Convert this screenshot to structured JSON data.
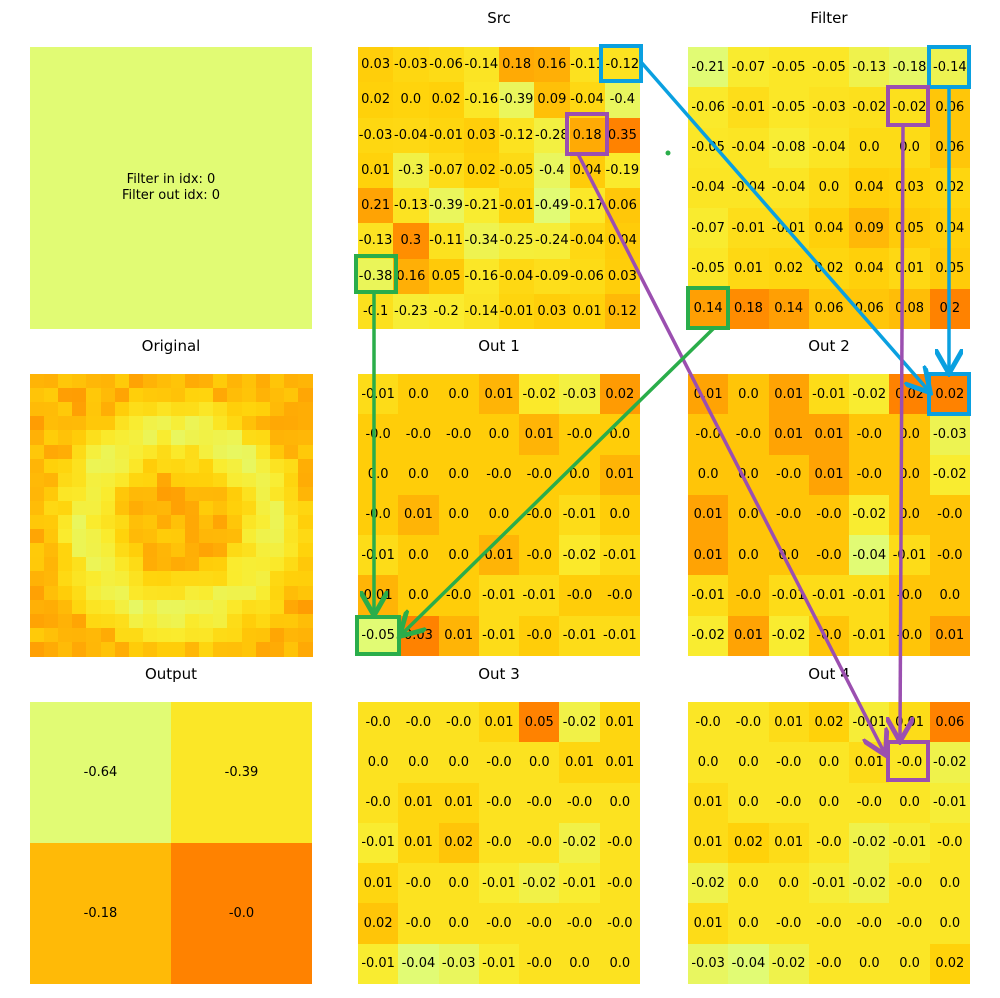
{
  "titles": {
    "src": "Src",
    "filter": "Filter",
    "original": "Original",
    "out1": "Out 1",
    "out2": "Out 2",
    "out3": "Out 3",
    "out4": "Out 4",
    "output": "Output"
  },
  "info": {
    "line1": "Filter in idx: 0",
    "line2": "Filter out idx: 0"
  },
  "src": [
    [
      "0.03",
      "-0.03",
      "-0.06",
      "-0.14",
      "0.18",
      "0.16",
      "-0.11",
      "-0.12"
    ],
    [
      "0.02",
      "0.0",
      "0.02",
      "-0.16",
      "-0.39",
      "0.09",
      "-0.04",
      "-0.4"
    ],
    [
      "-0.03",
      "-0.04",
      "-0.01",
      "0.03",
      "-0.12",
      "-0.28",
      "0.18",
      "0.35"
    ],
    [
      "0.01",
      "-0.3",
      "-0.07",
      "0.02",
      "-0.05",
      "-0.4",
      "0.04",
      "-0.19"
    ],
    [
      "0.21",
      "-0.13",
      "-0.39",
      "-0.21",
      "-0.01",
      "-0.49",
      "-0.17",
      "0.06"
    ],
    [
      "-0.13",
      "0.3",
      "-0.11",
      "-0.34",
      "-0.25",
      "-0.24",
      "-0.04",
      "0.04"
    ],
    [
      "-0.38",
      "0.16",
      "0.05",
      "-0.16",
      "-0.04",
      "-0.09",
      "-0.06",
      "0.03"
    ],
    [
      "-0.1",
      "-0.23",
      "-0.2",
      "-0.14",
      "-0.01",
      "0.03",
      "0.01",
      "0.12"
    ]
  ],
  "filter": [
    [
      "-0.21",
      "-0.07",
      "-0.05",
      "-0.05",
      "-0.13",
      "-0.18",
      "-0.14"
    ],
    [
      "-0.06",
      "-0.01",
      "-0.05",
      "-0.03",
      "-0.02",
      "-0.02",
      "0.06"
    ],
    [
      "-0.05",
      "-0.04",
      "-0.08",
      "-0.04",
      "0.0",
      "0.0",
      "0.06"
    ],
    [
      "-0.04",
      "-0.04",
      "-0.04",
      "0.0",
      "0.04",
      "0.03",
      "0.02"
    ],
    [
      "-0.07",
      "-0.01",
      "-0.01",
      "0.04",
      "0.09",
      "0.05",
      "0.04"
    ],
    [
      "-0.05",
      "0.01",
      "0.02",
      "0.02",
      "0.04",
      "0.01",
      "0.05"
    ],
    [
      "0.14",
      "0.18",
      "0.14",
      "0.06",
      "0.06",
      "0.08",
      "0.2"
    ]
  ],
  "out1": [
    [
      "-0.01",
      "0.0",
      "0.0",
      "0.01",
      "-0.02",
      "-0.03",
      "0.02"
    ],
    [
      "-0.0",
      "-0.0",
      "-0.0",
      "0.0",
      "0.01",
      "-0.0",
      "0.0"
    ],
    [
      "0.0",
      "0.0",
      "0.0",
      "-0.0",
      "-0.0",
      "0.0",
      "0.01"
    ],
    [
      "-0.0",
      "0.01",
      "0.0",
      "0.0",
      "-0.0",
      "-0.01",
      "0.0"
    ],
    [
      "-0.01",
      "0.0",
      "0.0",
      "0.01",
      "-0.0",
      "-0.02",
      "-0.01"
    ],
    [
      "0.01",
      "0.0",
      "-0.0",
      "-0.01",
      "-0.01",
      "-0.0",
      "-0.0"
    ],
    [
      "-0.05",
      "0.03",
      "0.01",
      "-0.01",
      "-0.0",
      "-0.01",
      "-0.01"
    ]
  ],
  "out2": [
    [
      "0.01",
      "0.0",
      "0.01",
      "-0.01",
      "-0.02",
      "0.02",
      "0.02"
    ],
    [
      "-0.0",
      "-0.0",
      "0.01",
      "0.01",
      "-0.0",
      "0.0",
      "-0.03"
    ],
    [
      "0.0",
      "0.0",
      "-0.0",
      "0.01",
      "-0.0",
      "0.0",
      "-0.02"
    ],
    [
      "0.01",
      "0.0",
      "-0.0",
      "-0.0",
      "-0.02",
      "0.0",
      "-0.0"
    ],
    [
      "0.01",
      "0.0",
      "0.0",
      "-0.0",
      "-0.04",
      "-0.01",
      "-0.0"
    ],
    [
      "-0.01",
      "-0.0",
      "-0.01",
      "-0.01",
      "-0.01",
      "-0.0",
      "0.0"
    ],
    [
      "-0.02",
      "0.01",
      "-0.02",
      "-0.0",
      "-0.01",
      "-0.0",
      "0.01"
    ]
  ],
  "out3": [
    [
      "-0.0",
      "-0.0",
      "-0.0",
      "0.01",
      "0.05",
      "-0.02",
      "0.01"
    ],
    [
      "0.0",
      "0.0",
      "0.0",
      "-0.0",
      "0.0",
      "0.01",
      "0.01"
    ],
    [
      "-0.0",
      "0.01",
      "0.01",
      "-0.0",
      "-0.0",
      "-0.0",
      "0.0"
    ],
    [
      "-0.01",
      "0.01",
      "0.02",
      "-0.0",
      "-0.0",
      "-0.02",
      "-0.0"
    ],
    [
      "0.01",
      "-0.0",
      "0.0",
      "-0.01",
      "-0.02",
      "-0.01",
      "-0.0"
    ],
    [
      "0.02",
      "-0.0",
      "0.0",
      "-0.0",
      "-0.0",
      "-0.0",
      "-0.0"
    ],
    [
      "-0.01",
      "-0.04",
      "-0.03",
      "-0.01",
      "-0.0",
      "0.0",
      "0.0"
    ]
  ],
  "out4": [
    [
      "-0.0",
      "-0.0",
      "0.01",
      "0.02",
      "-0.01",
      "0.01",
      "0.06"
    ],
    [
      "0.0",
      "0.0",
      "-0.0",
      "0.0",
      "0.01",
      "-0.0",
      "-0.02"
    ],
    [
      "0.01",
      "0.0",
      "-0.0",
      "0.0",
      "-0.0",
      "0.0",
      "-0.01"
    ],
    [
      "0.01",
      "0.02",
      "0.01",
      "-0.0",
      "-0.02",
      "-0.01",
      "-0.0"
    ],
    [
      "-0.02",
      "0.0",
      "0.0",
      "-0.01",
      "-0.02",
      "-0.0",
      "0.0"
    ],
    [
      "0.01",
      "0.0",
      "-0.0",
      "-0.0",
      "-0.0",
      "-0.0",
      "0.0"
    ],
    [
      "-0.03",
      "-0.04",
      "-0.02",
      "-0.0",
      "0.0",
      "0.0",
      "0.02"
    ]
  ],
  "output": [
    [
      "-0.64",
      "-0.39"
    ],
    [
      "-0.18",
      "-0.0"
    ]
  ],
  "highlight_colors": {
    "blue": "#0aa0e0",
    "purple": "#9b4fb0",
    "green": "#2aad4a"
  }
}
